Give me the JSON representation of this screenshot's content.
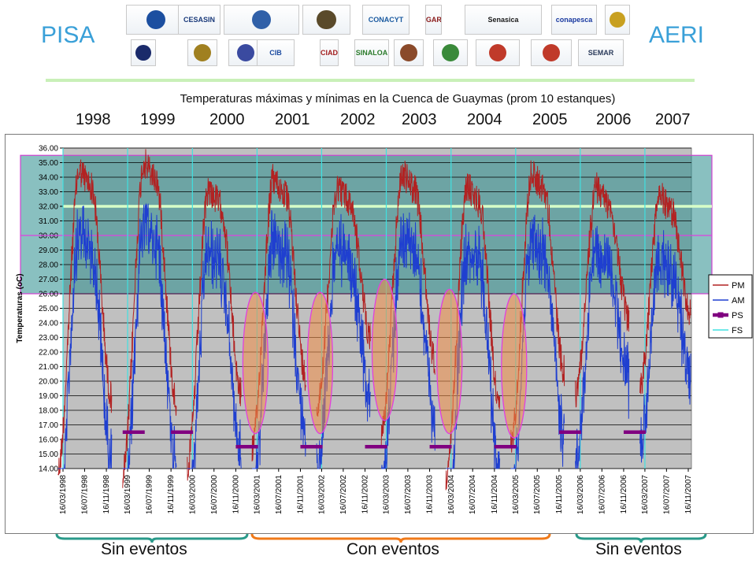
{
  "header": {
    "left_label": "PISA",
    "right_label": "AERI",
    "logos": [
      {
        "name": "logo-circle-blue",
        "text": "",
        "color": "#1c4fa0"
      },
      {
        "name": "logo-cesasin",
        "text": "CESASIN",
        "color": "#1a3a7a"
      },
      {
        "name": "logo-comite-baja-california",
        "text": "",
        "color": "#3060a8"
      },
      {
        "name": "logo-comite-nayarit",
        "text": "",
        "color": "#5a4a2a"
      },
      {
        "name": "logo-conacyt",
        "text": "CONACYT",
        "color": "#1a5aa0"
      },
      {
        "name": "logo-sagarpa",
        "text": "SAGARPA",
        "color": "#8a1a1a"
      },
      {
        "name": "logo-senasica",
        "text": "Senasica",
        "color": "#1a1a1a"
      },
      {
        "name": "logo-conapesca",
        "text": "conapesca",
        "color": "#1a3aa0"
      },
      {
        "name": "logo-shield-yellow",
        "text": "",
        "color": "#c8a020"
      },
      {
        "name": "logo-unam",
        "text": "",
        "color": "#1a2a6a"
      },
      {
        "name": "logo-crest-gold",
        "text": "",
        "color": "#a08020"
      },
      {
        "name": "logo-crest-blue",
        "text": "",
        "color": "#3a4aa0"
      },
      {
        "name": "logo-cib",
        "text": "CIB",
        "color": "#1a4aa0"
      },
      {
        "name": "logo-ciad",
        "text": "CIAD",
        "color": "#a01a1a"
      },
      {
        "name": "logo-sinaloa",
        "text": "SINALOA",
        "color": "#2a7a2a"
      },
      {
        "name": "logo-crest-brown",
        "text": "",
        "color": "#8a4a2a"
      },
      {
        "name": "logo-circle-green",
        "text": "",
        "color": "#3a8a3a"
      },
      {
        "name": "logo-circle-red",
        "text": "",
        "color": "#c03a2a"
      },
      {
        "name": "logo-triangle-red",
        "text": "",
        "color": "#c03a2a"
      },
      {
        "name": "logo-semar",
        "text": "SEMAR",
        "color": "#2a3a5a"
      }
    ]
  },
  "years": [
    "1998",
    "1999",
    "2000",
    "2001",
    "2002",
    "2003",
    "2004",
    "2005",
    "2006",
    "2007"
  ],
  "footer": {
    "left": "Sin eventos",
    "middle": "Con eventos",
    "right": "Sin eventos",
    "brace_left_color": "#2a9a8a",
    "brace_middle_color": "#f07a1a",
    "brace_right_color": "#2a9a8a"
  },
  "chart_data": {
    "type": "line",
    "title": "Temperaturas máximas y mínimas en la Cuenca de Guaymas (prom 10 estanques)",
    "ylabel": "Temperaturas (oC)",
    "xlabel": "",
    "ylim": [
      14,
      36
    ],
    "yticks": [
      "14.00",
      "15.00",
      "16.00",
      "17.00",
      "18.00",
      "19.00",
      "20.00",
      "21.00",
      "22.00",
      "23.00",
      "24.00",
      "25.00",
      "26.00",
      "27.00",
      "28.00",
      "29.00",
      "30.00",
      "31.00",
      "32.00",
      "33.00",
      "34.00",
      "35.00",
      "36.00"
    ],
    "x_tick_labels": [
      "16/03/1998",
      "16/07/1998",
      "16/11/1998",
      "16/03/1999",
      "16/07/1999",
      "16/11/1999",
      "16/03/2000",
      "16/07/2000",
      "16/11/2000",
      "16/03/2001",
      "16/07/2001",
      "16/11/2001",
      "16/03/2002",
      "16/07/2002",
      "16/11/2002",
      "16/03/2003",
      "16/07/2003",
      "16/11/2003",
      "16/03/2004",
      "16/07/2004",
      "16/11/2004",
      "16/03/2005",
      "16/07/2005",
      "16/11/2005",
      "16/03/2006",
      "16/07/2006",
      "16/11/2006",
      "16/03/2007",
      "16/07/2007",
      "16/11/2007"
    ],
    "grid": true,
    "background_color": "#c0c0c0",
    "legend": {
      "position": "right",
      "entries": [
        {
          "name": "PM",
          "color": "#b22222"
        },
        {
          "name": "AM",
          "color": "#1f3fd0"
        },
        {
          "name": "PS",
          "color": "#800080"
        },
        {
          "name": "FS",
          "color": "#40e0e0"
        }
      ]
    },
    "band_range": [
      26,
      35.5
    ],
    "band_mid_line": 30,
    "reference_line": 32,
    "seasons": [
      {
        "year": "1998",
        "min": 15.0,
        "max": 35.6,
        "am_max": 32.2,
        "start": "16/02/1998",
        "end": "16/12/1998"
      },
      {
        "year": "1999",
        "min": 14.7,
        "max": 36.1,
        "am_max": 32.2,
        "start": "16/02/1999",
        "end": "16/12/1999"
      },
      {
        "year": "2000",
        "min": 15.3,
        "max": 34.3,
        "am_max": 31.6,
        "start": "16/02/2000",
        "end": "16/12/2000"
      },
      {
        "year": "2001",
        "min": 16.5,
        "max": 35.0,
        "am_max": 32.0,
        "start": "16/02/2001",
        "end": "16/12/2001"
      },
      {
        "year": "2002",
        "min": 19.3,
        "max": 34.5,
        "am_max": 31.8,
        "start": "16/02/2002",
        "end": "16/12/2002"
      },
      {
        "year": "2003",
        "min": 17.6,
        "max": 35.4,
        "am_max": 32.4,
        "start": "16/02/2003",
        "end": "16/12/2003"
      },
      {
        "year": "2004",
        "min": 14.2,
        "max": 34.5,
        "am_max": 32.2,
        "start": "16/02/2004",
        "end": "16/12/2004"
      },
      {
        "year": "2005",
        "min": 16.8,
        "max": 35.4,
        "am_max": 32.3,
        "start": "16/02/2005",
        "end": "16/12/2005"
      },
      {
        "year": "2006",
        "min": 20.3,
        "max": 34.4,
        "am_max": 32.0,
        "start": "16/02/2006",
        "end": "16/12/2006"
      },
      {
        "year": "2007",
        "min": 20.8,
        "max": 33.9,
        "am_max": 32.3,
        "start": "16/02/2007",
        "end": "30/11/2007"
      }
    ],
    "ps_segments": [
      {
        "start": "16/02/1999",
        "end": "16/02/1999",
        "y": 16.5
      },
      {
        "start": "16/11/1999",
        "end": "16/01/2000",
        "y": 16.5
      },
      {
        "start": "16/11/2000",
        "end": "01/01/2001",
        "y": 15.5
      },
      {
        "start": "16/11/2001",
        "end": "01/01/2002",
        "y": 15.5
      },
      {
        "start": "16/11/2002",
        "end": "01/01/2003",
        "y": 15.5
      },
      {
        "start": "16/11/2003",
        "end": "01/01/2004",
        "y": 15.5
      },
      {
        "start": "16/11/2004",
        "end": "01/01/2005",
        "y": 15.5
      },
      {
        "start": "16/11/2005",
        "end": "16/01/2006",
        "y": 16.5
      },
      {
        "start": "16/11/2006",
        "end": "16/01/2007",
        "y": 16.5
      }
    ],
    "event_ellipses": [
      {
        "year": "2001",
        "ymin": 16.4,
        "ymax": 26.1
      },
      {
        "year": "2002",
        "ymin": 16.4,
        "ymax": 26.1
      },
      {
        "year": "2003",
        "ymin": 17.3,
        "ymax": 27.0
      },
      {
        "year": "2004",
        "ymin": 16.4,
        "ymax": 26.3
      },
      {
        "year": "2005",
        "ymin": 16.1,
        "ymax": 26.0
      }
    ]
  }
}
